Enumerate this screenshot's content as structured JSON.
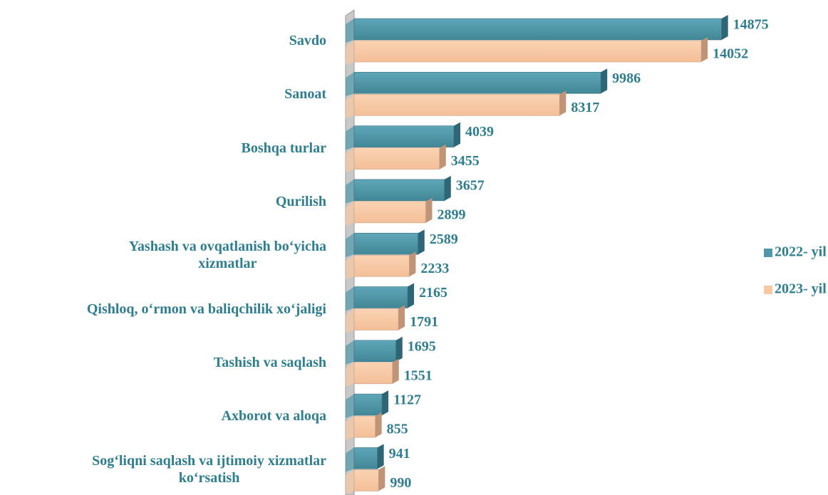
{
  "chart_data": {
    "type": "bar",
    "orientation": "horizontal",
    "categories": [
      "Savdo",
      "Sanoat",
      "Boshqa turlar",
      "Qurilish",
      "Yashash va ovqatlanish bo‘yicha\nxizmatlar",
      "Qishloq, o‘rmon va baliqchilik xo‘jaligi",
      "Tashish va saqlash",
      "Axborot va aloqa",
      "Sog‘liqni saqlash va ijtimoiy xizmatlar\nko‘rsatish"
    ],
    "series": [
      {
        "name": "2022- yil",
        "color": "#4f97a9",
        "values": [
          14875,
          9986,
          4039,
          3657,
          2589,
          2165,
          1695,
          1127,
          941
        ]
      },
      {
        "name": "2023- yil",
        "color": "#f8c8a3",
        "values": [
          14052,
          8317,
          3455,
          2899,
          2233,
          1791,
          1551,
          855,
          990
        ]
      }
    ],
    "xlim": [
      0,
      15000
    ],
    "legend": "right"
  }
}
